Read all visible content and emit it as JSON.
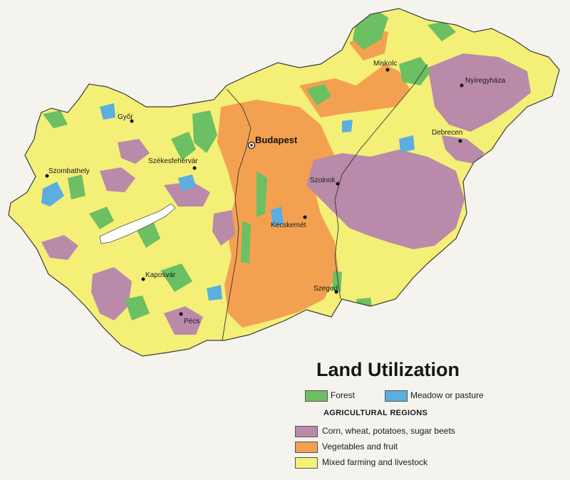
{
  "title": "Land Utilization",
  "legend": {
    "forest": {
      "label": "Forest",
      "color": "#6cbf63"
    },
    "meadow": {
      "label": "Meadow or pasture",
      "color": "#5aaee0"
    },
    "agri_heading": "AGRICULTURAL REGIONS",
    "corn": {
      "label": "Corn, wheat, potatoes, sugar beets",
      "color": "#b98aa9"
    },
    "vegetables": {
      "label": "Vegetables and fruit",
      "color": "#f3a150"
    },
    "mixed": {
      "label": "Mixed farming and livestock",
      "color": "#f4ef77"
    }
  },
  "colors": {
    "background": "#f4f3ee",
    "border": "#3a3a3a",
    "city_dot": "#111111",
    "lake_fill": "#ffffff"
  },
  "cities": {
    "budapest": "Budapest",
    "miskolc": "Miskolc",
    "nyiregyhaza": "Nyíregyháza",
    "gyor": "Győr",
    "debrecen": "Debrecen",
    "szombathely": "Szombathely",
    "szekesfehervar": "Székesfehérvár",
    "szolnok": "Szolnok",
    "kecskemet": "Kecskemét",
    "kaposvar": "Kaposvár",
    "szeged": "Szeged",
    "pecs": "Pécs"
  }
}
